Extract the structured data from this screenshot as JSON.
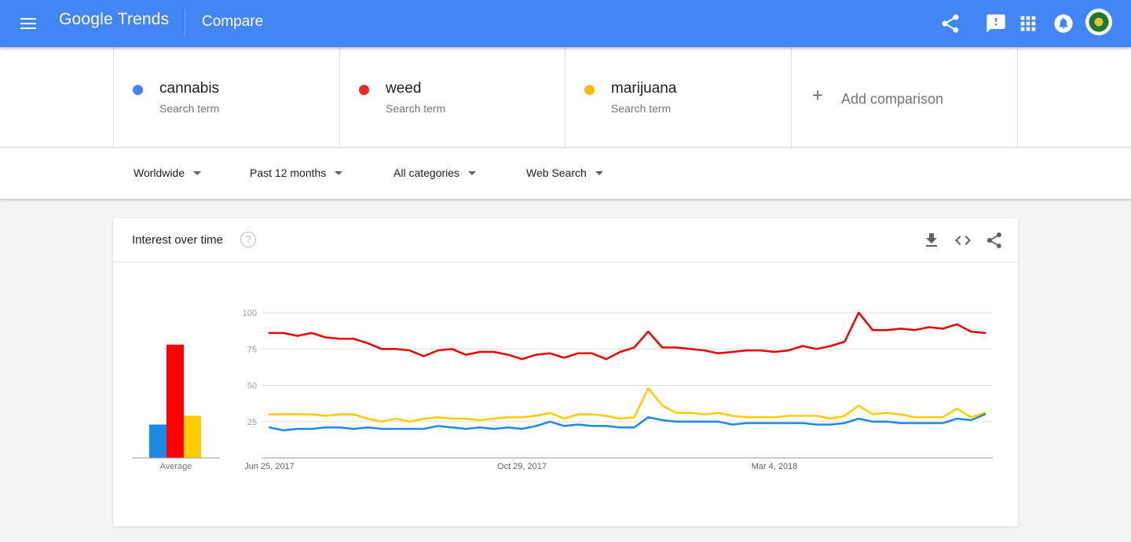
{
  "header": {
    "logo_text": "Google Trends",
    "title": "Compare",
    "icons": [
      "menu-icon",
      "share-icon",
      "feedback-icon",
      "apps-icon",
      "notifications-icon",
      "avatar"
    ],
    "color": "#4285f4"
  },
  "terms": [
    {
      "name": "cannabis",
      "sub": "Search term",
      "color": "#4285f4"
    },
    {
      "name": "weed",
      "sub": "Search term",
      "color": "#ea2b1f"
    },
    {
      "name": "marijuana",
      "sub": "Search term",
      "color": "#fbbc05"
    }
  ],
  "add_comparison": {
    "label": "Add comparison",
    "icon": "plus-icon"
  },
  "filters": [
    {
      "label": "Worldwide"
    },
    {
      "label": "Past 12 months"
    },
    {
      "label": "All categories"
    },
    {
      "label": "Web Search"
    }
  ],
  "card": {
    "title": "Interest over time",
    "help_icon": "?",
    "actions": [
      "download-icon",
      "embed-icon",
      "share-icon"
    ]
  },
  "chart_data": {
    "type": "line",
    "y_ticks": [
      "100",
      "75",
      "50",
      "25"
    ],
    "ylim": [
      0,
      100
    ],
    "x_tick_labels": [
      {
        "label": "Jun 25, 2017",
        "index": 0
      },
      {
        "label": "Oct 29, 2017",
        "index": 18
      },
      {
        "label": "Mar 4, 2018",
        "index": 36
      }
    ],
    "grid": true,
    "averages_label": "Average",
    "averages": [
      {
        "series": "cannabis",
        "value": 23,
        "color": "#1e88e5"
      },
      {
        "series": "weed",
        "value": 78,
        "color": "#ff0000"
      },
      {
        "series": "marijuana",
        "value": 29,
        "color": "#ffcc00"
      }
    ],
    "series": [
      {
        "name": "weed",
        "color": "#ee0000",
        "values": [
          86,
          86,
          84,
          86,
          83,
          82,
          82,
          79,
          75,
          75,
          74,
          70,
          74,
          75,
          71,
          73,
          73,
          71,
          68,
          71,
          72,
          69,
          72,
          72,
          68,
          73,
          76,
          87,
          76,
          76,
          75,
          74,
          72,
          73,
          74,
          74,
          73,
          74,
          77,
          75,
          77,
          80,
          100,
          88,
          88,
          89,
          88,
          90,
          89,
          92,
          87,
          86
        ]
      },
      {
        "name": "marijuana",
        "color": "#ffcc00",
        "values": [
          30,
          30,
          30,
          30,
          29,
          30,
          30,
          27,
          25,
          27,
          25,
          27,
          28,
          27,
          27,
          26,
          27,
          28,
          28,
          29,
          31,
          27,
          30,
          30,
          29,
          27,
          28,
          48,
          36,
          31,
          31,
          30,
          31,
          29,
          28,
          28,
          28,
          29,
          29,
          29,
          27,
          29,
          36,
          30,
          31,
          30,
          28,
          28,
          28,
          34,
          28,
          31
        ]
      },
      {
        "name": "cannabis",
        "color": "#1e88e5",
        "values": [
          21,
          19,
          20,
          20,
          21,
          21,
          20,
          21,
          20,
          20,
          20,
          20,
          22,
          21,
          20,
          21,
          20,
          21,
          20,
          22,
          25,
          22,
          23,
          22,
          22,
          21,
          21,
          28,
          26,
          25,
          25,
          25,
          25,
          23,
          24,
          24,
          24,
          24,
          24,
          23,
          23,
          24,
          27,
          25,
          25,
          24,
          24,
          24,
          24,
          27,
          26,
          30
        ]
      }
    ]
  }
}
